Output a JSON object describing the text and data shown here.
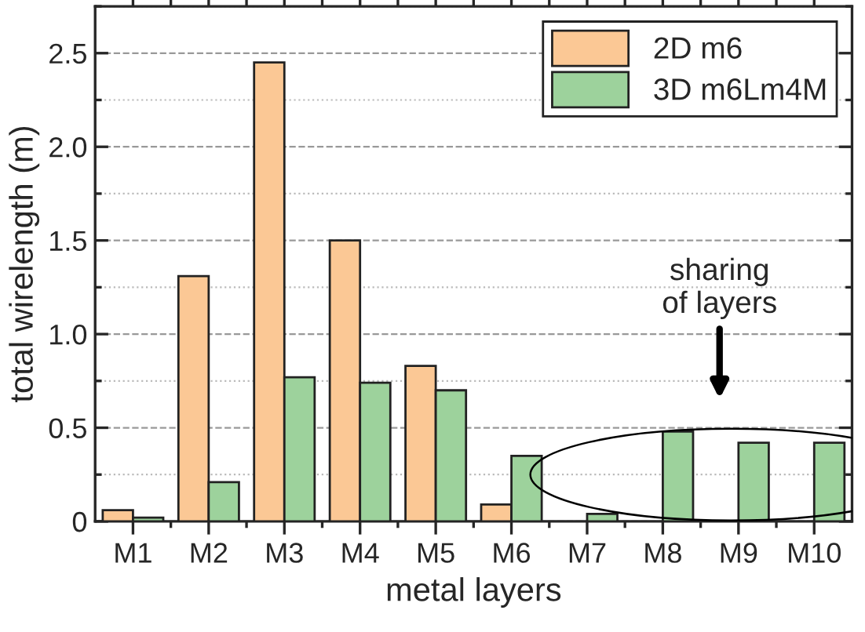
{
  "chart_data": {
    "type": "bar",
    "xlabel": "metal layers",
    "ylabel": "total wirelength (m)",
    "categories": [
      "M1",
      "M2",
      "M3",
      "M4",
      "M5",
      "M6",
      "M7",
      "M8",
      "M9",
      "M10"
    ],
    "series": [
      {
        "name": "2D m6",
        "color": "#fbc895",
        "values": [
          0.06,
          1.31,
          2.45,
          1.5,
          0.83,
          0.09,
          null,
          null,
          null,
          null
        ]
      },
      {
        "name": "3D m6Lm4M",
        "color": "#9dd29c",
        "values": [
          0.02,
          0.21,
          0.77,
          0.74,
          0.7,
          0.35,
          0.04,
          0.48,
          0.42,
          0.42
        ]
      }
    ],
    "ylim": [
      0,
      2.75
    ],
    "yticks": [
      0,
      0.5,
      {
        "value": 1,
        "label": "1.0"
      },
      1.5,
      {
        "value": 2,
        "label": "2.0"
      },
      2.5
    ],
    "annotations": [
      "sharing\nof layers"
    ],
    "grid": "y",
    "legend": "top right"
  }
}
